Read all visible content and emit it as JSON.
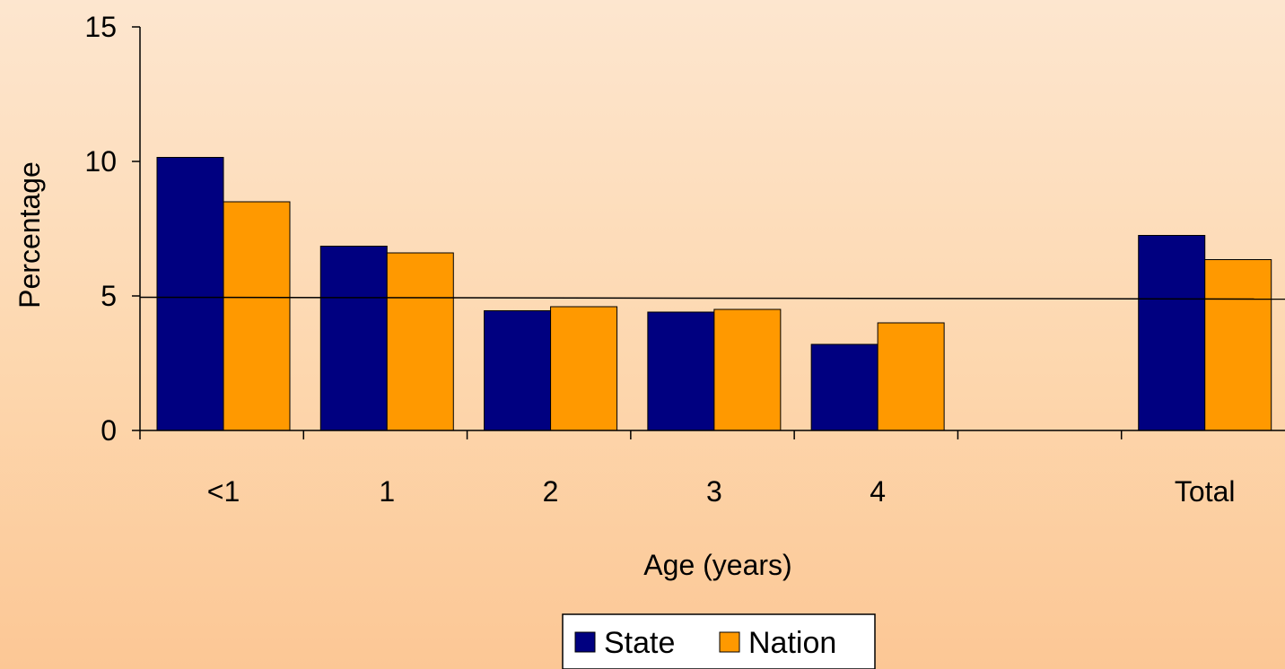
{
  "chart_data": {
    "type": "bar",
    "categories": [
      "<1",
      "1",
      "2",
      "3",
      "4",
      "",
      "Total"
    ],
    "series": [
      {
        "name": "State",
        "color": "#000080",
        "values": [
          10.15,
          6.85,
          4.45,
          4.4,
          3.2,
          null,
          7.25
        ]
      },
      {
        "name": "Nation",
        "color": "#FF9900",
        "values": [
          8.5,
          6.6,
          4.6,
          4.5,
          4.0,
          null,
          6.35
        ]
      }
    ],
    "title": "",
    "xlabel": "Age (years)",
    "ylabel": "Percentage",
    "ylim": [
      0,
      15
    ],
    "yticks": [
      0,
      5,
      10,
      15
    ],
    "reference_line": {
      "y": 4.95
    },
    "grid": false,
    "legend": {
      "position": "bottom-center"
    }
  }
}
